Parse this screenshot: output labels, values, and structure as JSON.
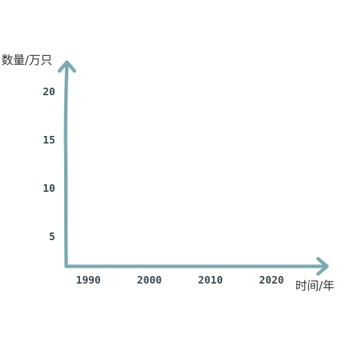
{
  "chart_data": {
    "type": "line",
    "title": "",
    "ylabel": "数量/万只",
    "xlabel": "时间/年",
    "x_ticks": [
      "1990",
      "2000",
      "2010",
      "2020"
    ],
    "y_ticks": [
      "5",
      "10",
      "15",
      "20"
    ],
    "series": [],
    "axis_color": "#7aaaaf",
    "tick_color": "#3b4a52",
    "grid": false
  }
}
